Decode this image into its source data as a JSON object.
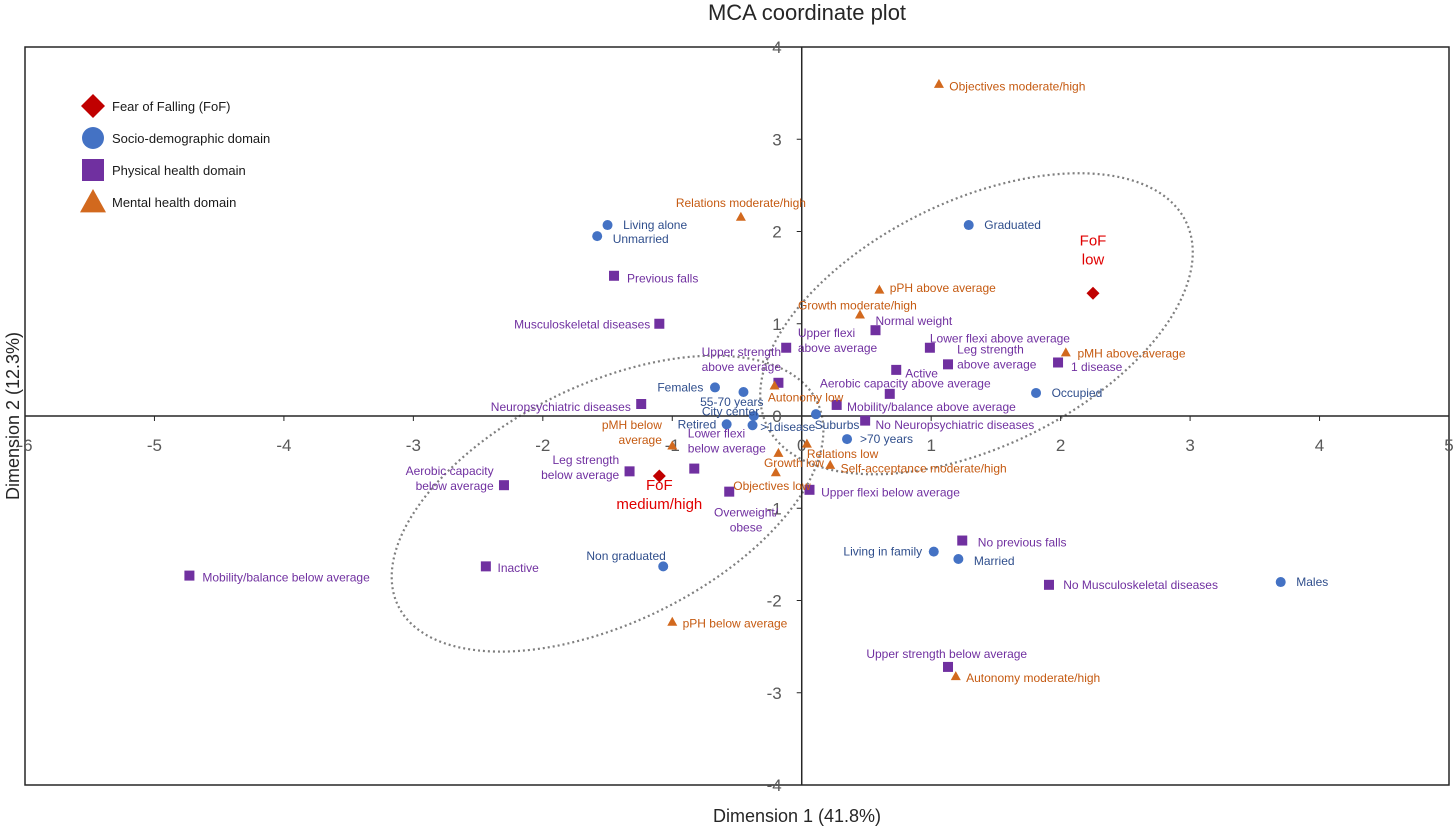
{
  "chart_data": {
    "type": "scatter",
    "title": "MCA coordinate plot",
    "xlabel": "Dimension 1 (41.8%)",
    "ylabel": "Dimension 2 (12.3%)",
    "xlim": [
      -6,
      5
    ],
    "ylim": [
      -4,
      4
    ],
    "xticks": [
      -6,
      -5,
      -4,
      -3,
      -2,
      -1,
      0,
      1,
      2,
      3,
      4,
      5
    ],
    "yticks": [
      -4,
      -3,
      -2,
      -1,
      0,
      1,
      2,
      3,
      4
    ],
    "xtick_labels": [
      "-6",
      "-5",
      "-4",
      "-3",
      "-2",
      "-1",
      "0",
      "1",
      "2",
      "3",
      "4",
      "5"
    ],
    "ytick_labels": [
      "-4",
      "-3",
      "-2",
      "-1",
      "0",
      "1",
      "2",
      "3",
      "4"
    ],
    "grid": false,
    "legend_position": "top-left",
    "series": [
      {
        "name": "Fear of Falling (FoF)",
        "marker": "diamond",
        "color": "#c00000",
        "label_color": "#e00000",
        "points": [
          {
            "x": 2.25,
            "y": 1.33,
            "label": "FoF\nlow",
            "big": true,
            "anchor": "middle",
            "lx": 2.25,
            "ly": 1.8
          },
          {
            "x": -1.1,
            "y": -0.65,
            "label": "FoF\nmedium/high",
            "big": true,
            "anchor": "middle",
            "lx": -1.1,
            "ly": -0.85
          }
        ]
      },
      {
        "name": "Socio-demographic domain",
        "marker": "circle",
        "color": "#4472c4",
        "label_color": "#2f4e8c",
        "points": [
          {
            "x": -1.5,
            "y": 2.07,
            "label": "Living alone",
            "anchor": "start",
            "lx": -1.38,
            "ly": 2.07
          },
          {
            "x": -1.58,
            "y": 1.95,
            "label": "Unmarried",
            "anchor": "start",
            "lx": -1.46,
            "ly": 1.92
          },
          {
            "x": 1.29,
            "y": 2.07,
            "label": "Graduated",
            "anchor": "start",
            "lx": 1.41,
            "ly": 2.07
          },
          {
            "x": -0.67,
            "y": 0.31,
            "label": "Females",
            "anchor": "end",
            "lx": -0.76,
            "ly": 0.31
          },
          {
            "x": -0.45,
            "y": 0.26,
            "label": "55-70 years",
            "anchor": "middle",
            "lx": -0.54,
            "ly": 0.15
          },
          {
            "x": -0.58,
            "y": -0.09,
            "label": "Retired",
            "anchor": "end",
            "lx": -0.66,
            "ly": -0.09
          },
          {
            "x": -0.38,
            "y": -0.1,
            "label": ">1disease",
            "anchor": "start",
            "lx": -0.32,
            "ly": -0.12
          },
          {
            "x": -0.37,
            "y": 0.0,
            "label": "City center",
            "anchor": "middle",
            "lx": -0.55,
            "ly": 0.05
          },
          {
            "x": 0.11,
            "y": 0.02,
            "label": "Suburbs",
            "anchor": "start",
            "lx": 0.1,
            "ly": -0.1
          },
          {
            "x": 0.35,
            "y": -0.25,
            "label": ">70 years",
            "anchor": "start",
            "lx": 0.45,
            "ly": -0.25
          },
          {
            "x": 1.81,
            "y": 0.25,
            "label": "Occupied",
            "anchor": "start",
            "lx": 1.93,
            "ly": 0.25
          },
          {
            "x": 1.02,
            "y": -1.47,
            "label": "Living in family",
            "anchor": "end",
            "lx": 0.93,
            "ly": -1.47
          },
          {
            "x": 1.21,
            "y": -1.55,
            "label": "Married",
            "anchor": "start",
            "lx": 1.33,
            "ly": -1.57
          },
          {
            "x": -1.07,
            "y": -1.63,
            "label": "Non graduated",
            "anchor": "end",
            "lx": -1.05,
            "ly": -1.52
          },
          {
            "x": 3.7,
            "y": -1.8,
            "label": "Males",
            "anchor": "start",
            "lx": 3.82,
            "ly": -1.8
          }
        ]
      },
      {
        "name": "Physical health domain",
        "marker": "square",
        "color": "#7030a0",
        "label_color": "#7030a0",
        "points": [
          {
            "x": -1.45,
            "y": 1.52,
            "label": "Previous falls",
            "anchor": "start",
            "lx": -1.35,
            "ly": 1.49
          },
          {
            "x": -1.1,
            "y": 1.0,
            "label": "Musculoskeletal diseases",
            "anchor": "end",
            "lx": -1.17,
            "ly": 0.99
          },
          {
            "x": 0.57,
            "y": 0.93,
            "label": "Normal weight",
            "anchor": "start",
            "lx": 0.57,
            "ly": 1.03
          },
          {
            "x": -0.12,
            "y": 0.74,
            "label": "Upper flexi\nabove average",
            "anchor": "start",
            "lx": -0.03,
            "ly": 0.82
          },
          {
            "x": 0.99,
            "y": 0.74,
            "label": "Lower flexi above average",
            "anchor": "start",
            "lx": 0.99,
            "ly": 0.84
          },
          {
            "x": -0.18,
            "y": 0.36,
            "label": "Upper strength\nabove average",
            "anchor": "end",
            "lx": -0.16,
            "ly": 0.61
          },
          {
            "x": 0.73,
            "y": 0.5,
            "label": "Active",
            "anchor": "start",
            "lx": 0.8,
            "ly": 0.46
          },
          {
            "x": 1.13,
            "y": 0.56,
            "label": "Leg strength\nabove average",
            "anchor": "start",
            "lx": 1.2,
            "ly": 0.64
          },
          {
            "x": 1.98,
            "y": 0.58,
            "label": "1 disease",
            "anchor": "start",
            "lx": 2.08,
            "ly": 0.53
          },
          {
            "x": 0.68,
            "y": 0.24,
            "label": "Aerobic capacity above average",
            "anchor": "start",
            "lx": 0.14,
            "ly": 0.35
          },
          {
            "x": -1.24,
            "y": 0.13,
            "label": "Neuropsychiatric diseases",
            "anchor": "end",
            "lx": -1.32,
            "ly": 0.1
          },
          {
            "x": 0.27,
            "y": 0.12,
            "label": "Mobility/balance above average",
            "anchor": "start",
            "lx": 0.35,
            "ly": 0.1
          },
          {
            "x": 0.49,
            "y": -0.05,
            "label": "No Neuropsychiatric diseases",
            "anchor": "start",
            "lx": 0.57,
            "ly": -0.1
          },
          {
            "x": -0.83,
            "y": -0.57,
            "label": "Lower flexi\nbelow average",
            "anchor": "start",
            "lx": -0.88,
            "ly": -0.27
          },
          {
            "x": -1.33,
            "y": -0.6,
            "label": "Leg strength\nbelow average",
            "anchor": "end",
            "lx": -1.41,
            "ly": -0.56
          },
          {
            "x": -2.3,
            "y": -0.75,
            "label": "Aerobic capacity\nbelow average",
            "anchor": "end",
            "lx": -2.38,
            "ly": -0.68
          },
          {
            "x": -0.56,
            "y": -0.82,
            "label": "Overweight/\nobese",
            "anchor": "middle",
            "lx": -0.43,
            "ly": -1.13
          },
          {
            "x": 0.06,
            "y": -0.8,
            "label": "Upper flexi below average",
            "anchor": "start",
            "lx": 0.15,
            "ly": -0.83
          },
          {
            "x": 1.24,
            "y": -1.35,
            "label": "No previous falls",
            "anchor": "start",
            "lx": 1.36,
            "ly": -1.37
          },
          {
            "x": 1.91,
            "y": -1.83,
            "label": "No Musculoskeletal diseases",
            "anchor": "start",
            "lx": 2.02,
            "ly": -1.83
          },
          {
            "x": -2.44,
            "y": -1.63,
            "label": "Inactive",
            "anchor": "start",
            "lx": -2.35,
            "ly": -1.65
          },
          {
            "x": -4.73,
            "y": -1.73,
            "label": "Mobility/balance below average",
            "anchor": "start",
            "lx": -4.63,
            "ly": -1.75
          },
          {
            "x": 1.13,
            "y": -2.72,
            "label": "Upper strength below average",
            "anchor": "middle",
            "lx": 1.12,
            "ly": -2.58
          }
        ]
      },
      {
        "name": "Mental health domain",
        "marker": "triangle",
        "color": "#d2691e",
        "label_color": "#c55a11",
        "points": [
          {
            "x": 1.06,
            "y": 3.6,
            "label": "Objectives moderate/high",
            "anchor": "start",
            "lx": 1.14,
            "ly": 3.57
          },
          {
            "x": -0.47,
            "y": 2.16,
            "label": "Relations moderate/high",
            "anchor": "middle",
            "lx": -0.47,
            "ly": 2.31
          },
          {
            "x": 0.6,
            "y": 1.37,
            "label": "pPH above average",
            "anchor": "start",
            "lx": 0.68,
            "ly": 1.39
          },
          {
            "x": 0.45,
            "y": 1.1,
            "label": "Growth moderate/high",
            "anchor": "middle",
            "lx": 0.43,
            "ly": 1.2
          },
          {
            "x": 2.04,
            "y": 0.69,
            "label": "pMH above average",
            "anchor": "start",
            "lx": 2.13,
            "ly": 0.68
          },
          {
            "x": -0.21,
            "y": 0.33,
            "label": "Autonomy low",
            "anchor": "middle",
            "lx": 0.03,
            "ly": 0.2
          },
          {
            "x": -1.0,
            "y": -0.32,
            "label": "pMH below\naverage",
            "anchor": "end",
            "lx": -1.08,
            "ly": -0.18
          },
          {
            "x": 0.04,
            "y": -0.3,
            "label": "Relations low",
            "anchor": "start",
            "lx": 0.04,
            "ly": -0.41
          },
          {
            "x": -0.18,
            "y": -0.4,
            "label": "Growth low",
            "anchor": "middle",
            "lx": -0.06,
            "ly": -0.51
          },
          {
            "x": 0.22,
            "y": -0.53,
            "label": "Self-acceptance moderate/high",
            "anchor": "start",
            "lx": 0.3,
            "ly": -0.57
          },
          {
            "x": -0.2,
            "y": -0.61,
            "label": "Objectives low",
            "anchor": "middle",
            "lx": -0.23,
            "ly": -0.76
          },
          {
            "x": -1.0,
            "y": -2.23,
            "label": "pPH below average",
            "anchor": "start",
            "lx": -0.92,
            "ly": -2.25
          },
          {
            "x": 1.19,
            "y": -2.82,
            "label": "Autonomy moderate/high",
            "anchor": "start",
            "lx": 1.27,
            "ly": -2.84
          }
        ]
      }
    ],
    "ellipses": [
      {
        "cx": 1.35,
        "cy": 1.0,
        "rx": 1.8,
        "ry": 0.95,
        "angle_deg": 26
      },
      {
        "cx": -1.5,
        "cy": -0.95,
        "rx": 1.8,
        "ry": 0.92,
        "angle_deg": 26
      }
    ]
  }
}
